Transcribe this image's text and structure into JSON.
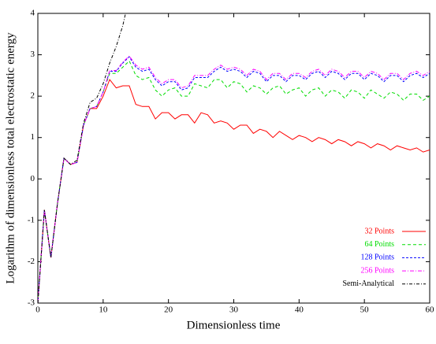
{
  "chart_data": {
    "type": "line",
    "xlabel": "Dimensionless time",
    "ylabel": "Logarithm of dimensionless total electrostatic energy",
    "xlim": [
      0,
      60
    ],
    "ylim": [
      -3,
      4
    ],
    "xticks": [
      0,
      10,
      20,
      30,
      40,
      50,
      60
    ],
    "yticks": [
      -3,
      -2,
      -1,
      0,
      1,
      2,
      3,
      4
    ],
    "legend": "lower right",
    "x": [
      0,
      1,
      2,
      3,
      4,
      5,
      6,
      7,
      8,
      9,
      10,
      11,
      12,
      13,
      14,
      15,
      16,
      17,
      18,
      19,
      20,
      21,
      22,
      23,
      24,
      25,
      26,
      27,
      28,
      29,
      30,
      31,
      32,
      33,
      34,
      35,
      36,
      37,
      38,
      39,
      40,
      41,
      42,
      43,
      44,
      45,
      46,
      47,
      48,
      49,
      50,
      51,
      52,
      53,
      54,
      55,
      56,
      57,
      58,
      59,
      60
    ],
    "series": [
      {
        "name": "32 Points",
        "color": "#ff0000",
        "dash": "none",
        "values": [
          -3,
          -0.75,
          -1.9,
          -0.6,
          0.5,
          0.35,
          0.4,
          1.3,
          1.7,
          1.7,
          2.0,
          2.4,
          2.2,
          2.25,
          2.25,
          1.8,
          1.75,
          1.75,
          1.45,
          1.6,
          1.6,
          1.45,
          1.55,
          1.55,
          1.35,
          1.6,
          1.55,
          1.35,
          1.4,
          1.35,
          1.2,
          1.3,
          1.3,
          1.1,
          1.2,
          1.15,
          1.0,
          1.15,
          1.05,
          0.95,
          1.05,
          1.0,
          0.9,
          1.0,
          0.95,
          0.85,
          0.95,
          0.9,
          0.8,
          0.9,
          0.85,
          0.75,
          0.85,
          0.8,
          0.7,
          0.8,
          0.75,
          0.7,
          0.75,
          0.65,
          0.7
        ]
      },
      {
        "name": "64 Points",
        "color": "#00dd00",
        "dash": "4,3",
        "values": [
          -3,
          -0.75,
          -1.9,
          -0.6,
          0.5,
          0.35,
          0.4,
          1.3,
          1.7,
          1.75,
          2.1,
          2.55,
          2.55,
          2.7,
          2.85,
          2.5,
          2.4,
          2.45,
          2.15,
          2.0,
          2.15,
          2.2,
          2.0,
          2.0,
          2.3,
          2.25,
          2.2,
          2.4,
          2.4,
          2.2,
          2.35,
          2.3,
          2.1,
          2.25,
          2.2,
          2.05,
          2.2,
          2.25,
          2.05,
          2.15,
          2.2,
          2.0,
          2.15,
          2.2,
          2.0,
          2.15,
          2.1,
          1.95,
          2.15,
          2.1,
          1.95,
          2.15,
          2.05,
          1.95,
          2.1,
          2.05,
          1.9,
          2.05,
          2.05,
          1.9,
          2.0
        ]
      },
      {
        "name": "128 Points",
        "color": "#0000ff",
        "dash": "3,2",
        "values": [
          -3,
          -0.75,
          -1.9,
          -0.6,
          0.5,
          0.35,
          0.4,
          1.3,
          1.7,
          1.75,
          2.1,
          2.6,
          2.6,
          2.8,
          2.95,
          2.7,
          2.6,
          2.65,
          2.4,
          2.25,
          2.35,
          2.35,
          2.15,
          2.2,
          2.45,
          2.45,
          2.45,
          2.6,
          2.7,
          2.6,
          2.65,
          2.6,
          2.45,
          2.6,
          2.55,
          2.35,
          2.5,
          2.5,
          2.35,
          2.5,
          2.5,
          2.4,
          2.55,
          2.6,
          2.45,
          2.6,
          2.55,
          2.4,
          2.55,
          2.55,
          2.4,
          2.55,
          2.5,
          2.35,
          2.5,
          2.5,
          2.35,
          2.5,
          2.55,
          2.45,
          2.55
        ]
      },
      {
        "name": "256 Points",
        "color": "#ff00ff",
        "dash": "5,2,1,2",
        "values": [
          -3,
          -0.75,
          -1.9,
          -0.6,
          0.5,
          0.35,
          0.4,
          1.3,
          1.7,
          1.75,
          2.1,
          2.62,
          2.62,
          2.82,
          2.97,
          2.75,
          2.65,
          2.7,
          2.45,
          2.3,
          2.4,
          2.4,
          2.2,
          2.25,
          2.5,
          2.5,
          2.5,
          2.65,
          2.75,
          2.65,
          2.7,
          2.65,
          2.5,
          2.65,
          2.6,
          2.4,
          2.55,
          2.55,
          2.4,
          2.55,
          2.55,
          2.45,
          2.6,
          2.65,
          2.5,
          2.65,
          2.6,
          2.45,
          2.6,
          2.6,
          2.45,
          2.6,
          2.55,
          2.4,
          2.55,
          2.55,
          2.4,
          2.55,
          2.6,
          2.5,
          2.6
        ]
      },
      {
        "name": "Semi-Analytical",
        "color": "#000000",
        "dash": "4,2,1,2",
        "values": [
          -3,
          -0.75,
          -1.9,
          -0.6,
          0.5,
          0.35,
          0.45,
          1.35,
          1.85,
          1.95,
          2.3,
          2.8,
          3.2,
          3.7,
          4.4,
          null,
          null,
          null,
          null,
          null,
          null,
          null,
          null,
          null,
          null,
          null,
          null,
          null,
          null,
          null,
          null,
          null,
          null,
          null,
          null,
          null,
          null,
          null,
          null,
          null,
          null,
          null,
          null,
          null,
          null,
          null,
          null,
          null,
          null,
          null,
          null,
          null,
          null,
          null,
          null,
          null,
          null,
          null,
          null,
          null,
          null
        ]
      }
    ]
  }
}
